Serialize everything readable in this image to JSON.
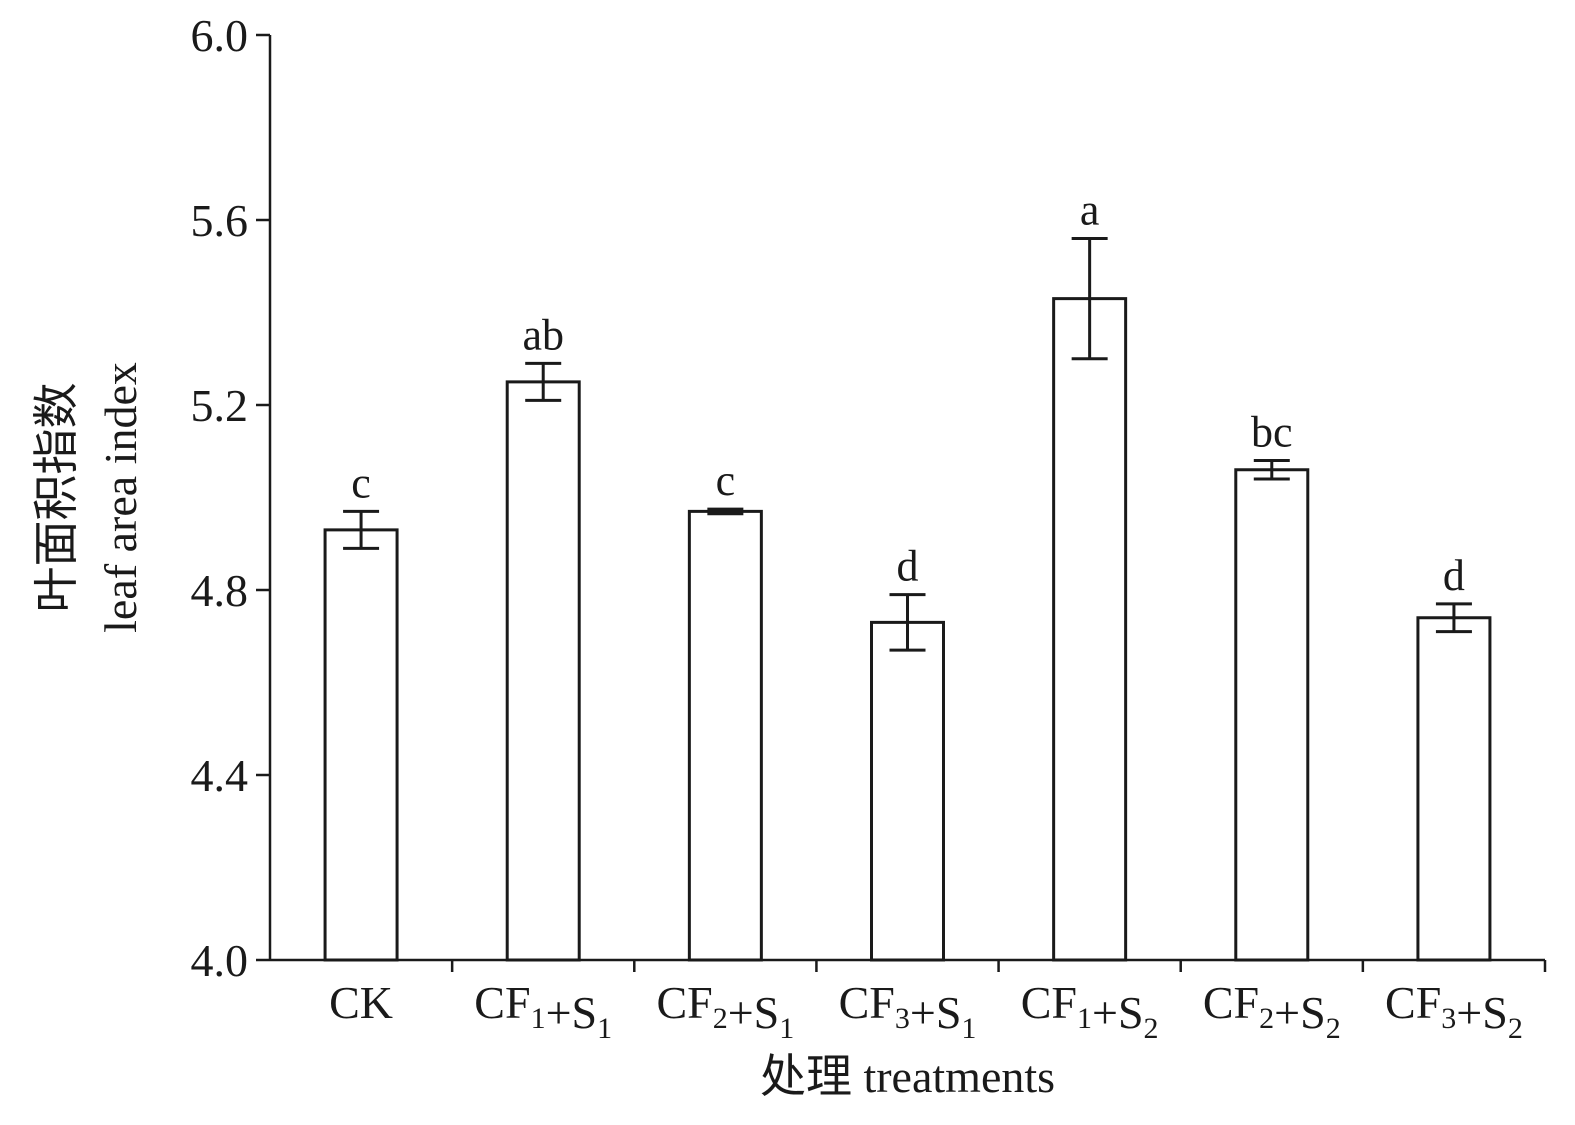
{
  "chart_data": {
    "type": "bar",
    "categories": [
      {
        "base": "CK",
        "sub": "",
        "plus": "",
        "base2": "",
        "sub2": ""
      },
      {
        "base": "CF",
        "sub": "1",
        "plus": "+",
        "base2": "S",
        "sub2": "1"
      },
      {
        "base": "CF",
        "sub": "2",
        "plus": "+",
        "base2": "S",
        "sub2": "1"
      },
      {
        "base": "CF",
        "sub": "3",
        "plus": "+",
        "base2": "S",
        "sub2": "1"
      },
      {
        "base": "CF",
        "sub": "1",
        "plus": "+",
        "base2": "S",
        "sub2": "2"
      },
      {
        "base": "CF",
        "sub": "2",
        "plus": "+",
        "base2": "S",
        "sub2": "2"
      },
      {
        "base": "CF",
        "sub": "3",
        "plus": "+",
        "base2": "S",
        "sub2": "2"
      }
    ],
    "values": [
      4.93,
      5.25,
      4.97,
      4.73,
      5.43,
      5.06,
      4.74
    ],
    "errors": [
      0.04,
      0.04,
      0.005,
      0.06,
      0.13,
      0.02,
      0.03
    ],
    "significance": [
      "c",
      "ab",
      "c",
      "d",
      "a",
      "bc",
      "d"
    ],
    "ylim": [
      4.0,
      6.0
    ],
    "yticks": [
      "4.0",
      "4.4",
      "4.8",
      "5.2",
      "5.6",
      "6.0"
    ],
    "ylabel_cn": "叶面积指数",
    "ylabel": "leaf area index",
    "xlabel": "处理 treatments",
    "grid": false,
    "colors": {
      "bar_fill": "#ffffff",
      "stroke": "#1a1a1a"
    }
  }
}
